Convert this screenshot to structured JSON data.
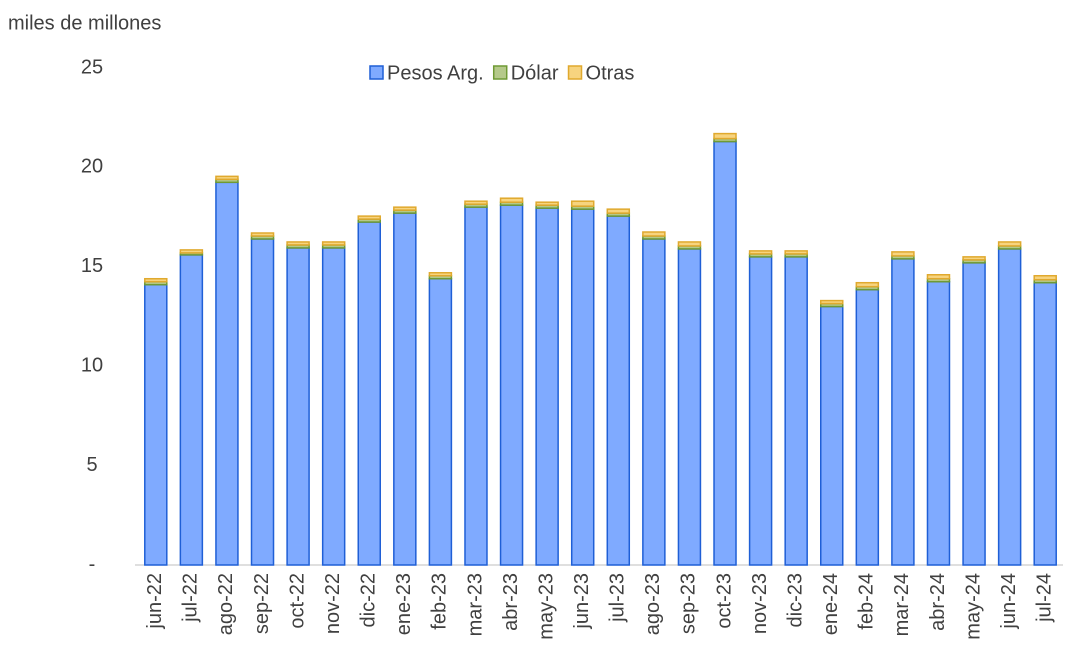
{
  "chart_data": {
    "type": "stacked_bar",
    "y_axis_label": "miles de millones",
    "categories": [
      "jun-22",
      "jul-22",
      "ago-22",
      "sep-22",
      "oct-22",
      "nov-22",
      "dic-22",
      "ene-23",
      "feb-23",
      "mar-23",
      "abr-23",
      "may-23",
      "jun-23",
      "jul-23",
      "ago-23",
      "sep-23",
      "oct-23",
      "nov-23",
      "dic-23",
      "ene-24",
      "feb-24",
      "mar-24",
      "abr-24",
      "may-24",
      "jun-24",
      "jul-24"
    ],
    "series": [
      {
        "name": "Pesos Arg.",
        "color": "#7faaff",
        "stroke": "#1f5fd6",
        "values": [
          14.1,
          15.6,
          19.25,
          16.4,
          15.95,
          15.95,
          17.25,
          17.7,
          14.4,
          18.0,
          18.1,
          17.95,
          17.9,
          17.55,
          16.4,
          15.9,
          21.3,
          15.5,
          15.5,
          13.0,
          13.85,
          15.4,
          14.25,
          15.2,
          15.9,
          14.2
        ]
      },
      {
        "name": "Dólar",
        "color": "#b5c98a",
        "stroke": "#6f9a34",
        "values": [
          0.15,
          0.1,
          0.15,
          0.15,
          0.15,
          0.15,
          0.15,
          0.15,
          0.15,
          0.15,
          0.15,
          0.15,
          0.15,
          0.15,
          0.15,
          0.15,
          0.15,
          0.15,
          0.15,
          0.15,
          0.15,
          0.15,
          0.15,
          0.15,
          0.15,
          0.15
        ]
      },
      {
        "name": "Otras",
        "color": "#f7d47f",
        "stroke": "#e0a92e",
        "values": [
          0.15,
          0.15,
          0.15,
          0.15,
          0.15,
          0.15,
          0.15,
          0.15,
          0.15,
          0.15,
          0.2,
          0.15,
          0.25,
          0.2,
          0.2,
          0.2,
          0.25,
          0.15,
          0.15,
          0.15,
          0.2,
          0.2,
          0.2,
          0.15,
          0.2,
          0.2
        ]
      }
    ],
    "ylim": [
      0,
      25
    ],
    "yticks": [
      {
        "value": 0,
        "label": "-"
      },
      5,
      10,
      15,
      20,
      25
    ],
    "legend": "top"
  }
}
